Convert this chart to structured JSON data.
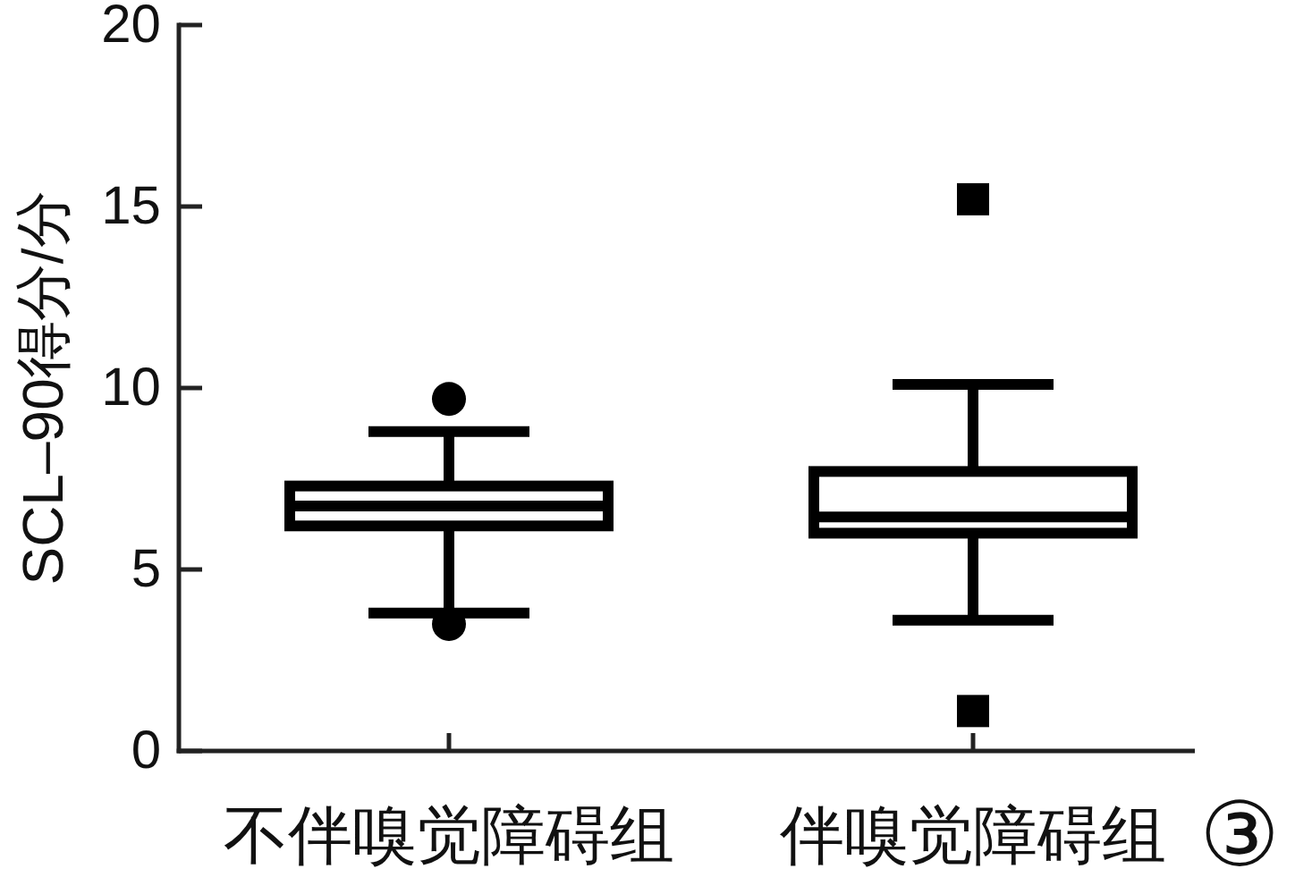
{
  "chart_data": {
    "type": "box",
    "ylabel": "SCL–90得分/分",
    "categories": [
      "不伴嗅觉障碍组",
      "伴嗅觉障碍组"
    ],
    "ylim": [
      0,
      20
    ],
    "yticks": [
      0,
      5,
      10,
      15,
      20
    ],
    "annotations": [
      "③"
    ],
    "series": [
      {
        "color": "#000000",
        "marker": "circle",
        "boxes": [
          {
            "low": 3.8,
            "q1": 6.2,
            "median": 6.75,
            "q3": 7.3,
            "high": 8.8,
            "outliers": [
              9.7,
              3.5
            ]
          },
          null
        ]
      },
      {
        "color": "#000000",
        "marker": "square",
        "boxes": [
          null,
          {
            "low": 3.6,
            "q1": 6.0,
            "median": 6.45,
            "q3": 7.7,
            "high": 10.1,
            "outliers": [
              15.2,
              1.1
            ]
          }
        ]
      }
    ]
  }
}
